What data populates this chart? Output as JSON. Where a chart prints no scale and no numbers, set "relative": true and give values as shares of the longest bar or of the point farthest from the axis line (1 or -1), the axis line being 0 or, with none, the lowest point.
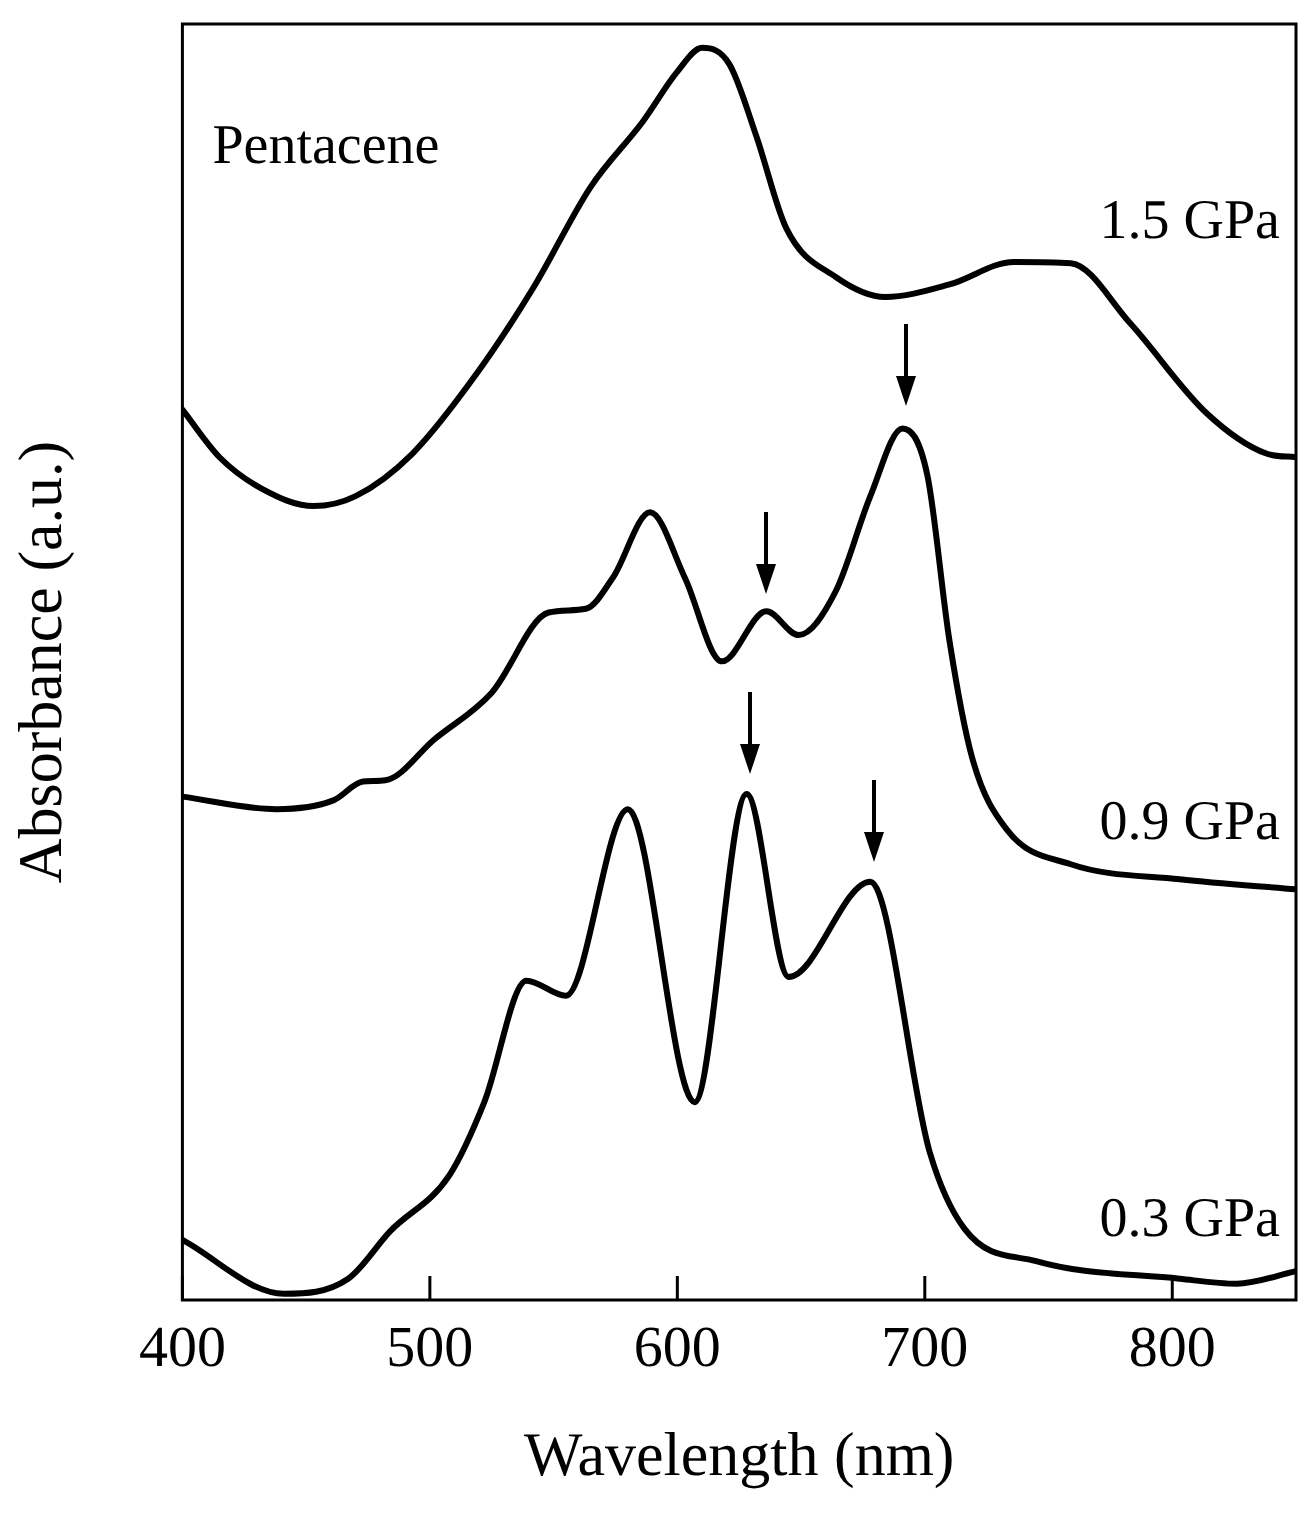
{
  "chart_data": {
    "type": "line",
    "xlabel": "Wavelength (nm)",
    "ylabel": "Absorbance (a.u.)",
    "relative": true,
    "xlim": [
      400,
      850
    ],
    "xticks": [
      400,
      500,
      600,
      700,
      800
    ],
    "grid": false,
    "legend": false,
    "marker": "none",
    "line_style": "solid",
    "annotations": [
      "Pentacene"
    ],
    "series": [
      {
        "name": "1.5 GPa",
        "color": "#000000",
        "x": [
          400,
          415,
          432,
          453,
          470,
          493,
          519,
          542,
          565,
          586,
          600,
          610,
          621,
          632,
          644,
          664,
          684,
          710,
          736,
          759,
          783,
          814,
          838,
          850
        ],
        "values": [
          0.711,
          0.673,
          0.648,
          0.634,
          0.642,
          0.676,
          0.74,
          0.809,
          0.889,
          0.941,
          0.981,
          1.0,
          0.987,
          0.929,
          0.856,
          0.817,
          0.801,
          0.811,
          0.829,
          0.828,
          0.78,
          0.708,
          0.676,
          0.673
        ]
      },
      {
        "name": "0.9 GPa",
        "color": "#000000",
        "x": [
          400,
          438,
          461,
          473,
          482,
          502,
          525,
          548,
          563,
          574,
          589,
          603,
          618,
          636,
          649,
          664,
          678,
          691,
          701,
          710,
          719,
          733,
          759,
          803,
          850
        ],
        "values": [
          0.402,
          0.392,
          0.399,
          0.414,
          0.415,
          0.448,
          0.485,
          0.549,
          0.552,
          0.577,
          0.629,
          0.577,
          0.51,
          0.55,
          0.531,
          0.566,
          0.642,
          0.696,
          0.659,
          0.526,
          0.434,
          0.376,
          0.348,
          0.336,
          0.328
        ]
      },
      {
        "name": "0.3 GPa",
        "color": "#000000",
        "x": [
          400,
          441,
          467,
          484,
          508,
          522,
          539,
          555,
          580,
          607,
          628,
          645,
          678,
          702,
          716,
          745,
          803,
          826,
          850
        ],
        "values": [
          0.048,
          0.005,
          0.017,
          0.055,
          0.1,
          0.158,
          0.255,
          0.243,
          0.392,
          0.158,
          0.404,
          0.258,
          0.334,
          0.118,
          0.057,
          0.031,
          0.017,
          0.013,
          0.023
        ]
      }
    ]
  }
}
